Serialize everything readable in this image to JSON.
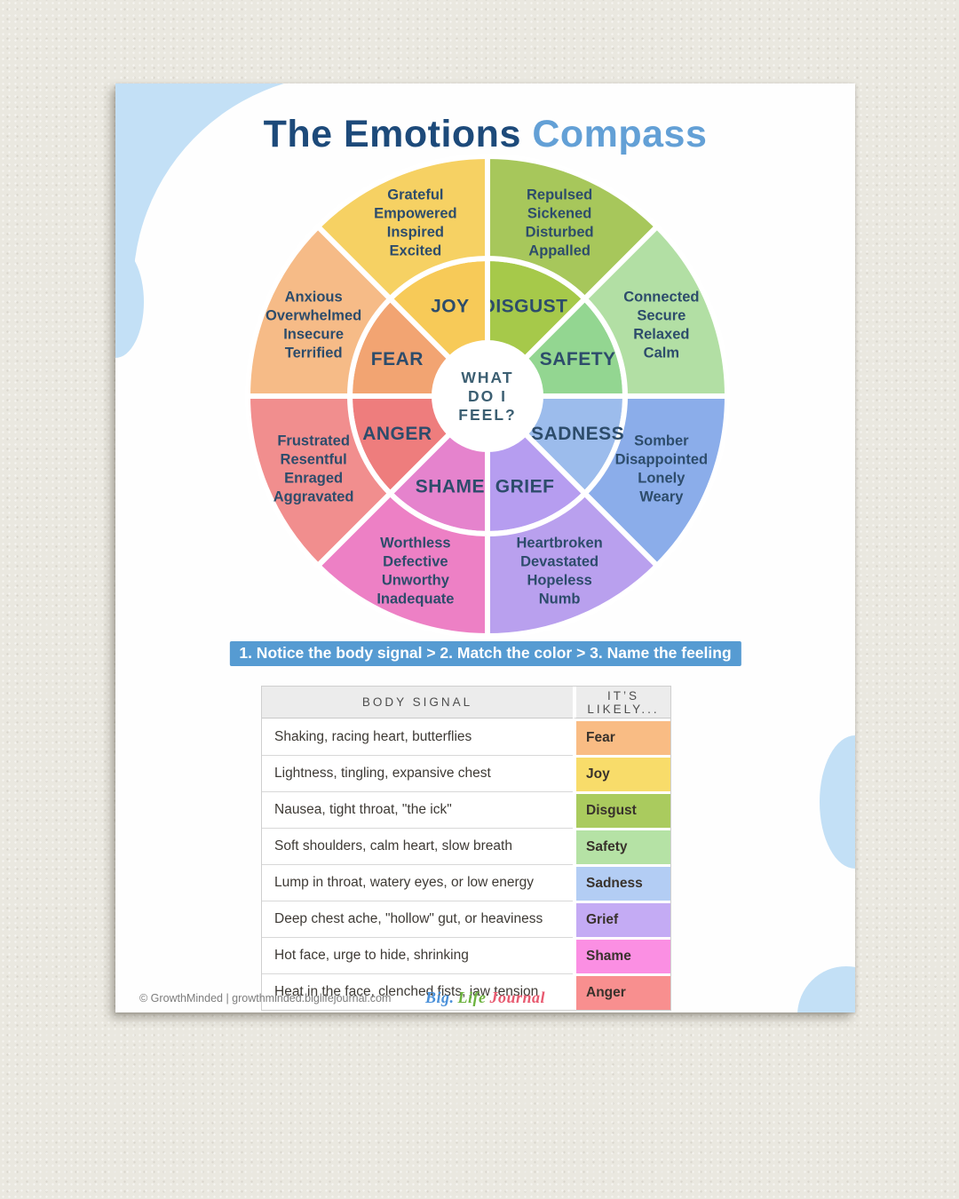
{
  "page": {
    "title_part1": "The Emotions",
    "title_part2": "Compass",
    "title_color1": "#1d4a7a",
    "title_color2": "#63a0d6"
  },
  "wheel": {
    "center_lines": [
      "WHAT",
      "DO I",
      "FEEL?"
    ],
    "center_text_color": "#3c5f72",
    "label_color": "#2d4c6b",
    "segments": [
      {
        "name": "DISGUST",
        "words": [
          "Repulsed",
          "Sickened",
          "Disturbed",
          "Appalled"
        ],
        "inner_color": "#a6c94a",
        "outer_color": "#a7c75b"
      },
      {
        "name": "SAFETY",
        "words": [
          "Connected",
          "Secure",
          "Relaxed",
          "Calm"
        ],
        "inner_color": "#93d691",
        "outer_color": "#b2dfa4"
      },
      {
        "name": "SADNESS",
        "words": [
          "Somber",
          "Disappointed",
          "Lonely",
          "Weary"
        ],
        "inner_color": "#9cbcec",
        "outer_color": "#8badea"
      },
      {
        "name": "GRIEF",
        "words": [
          "Heartbroken",
          "Devastated",
          "Hopeless",
          "Numb"
        ],
        "inner_color": "#b69df0",
        "outer_color": "#b9a0ee"
      },
      {
        "name": "SHAME",
        "words": [
          "Worthless",
          "Defective",
          "Unworthy",
          "Inadequate"
        ],
        "inner_color": "#e583cd",
        "outer_color": "#ed80c5"
      },
      {
        "name": "ANGER",
        "words": [
          "Frustrated",
          "Resentful",
          "Enraged",
          "Aggravated"
        ],
        "inner_color": "#ee7d7d",
        "outer_color": "#f18e8e"
      },
      {
        "name": "FEAR",
        "words": [
          "Anxious",
          "Overwhelmed",
          "Insecure",
          "Terrified"
        ],
        "inner_color": "#f2a472",
        "outer_color": "#f6bb87"
      },
      {
        "name": "JOY",
        "words": [
          "Grateful",
          "Empowered",
          "Inspired",
          "Excited"
        ],
        "inner_color": "#f7ca58",
        "outer_color": "#f6d163"
      }
    ]
  },
  "instruction": {
    "text": "1. Notice the body signal > 2. Match the color > 3. Name the feeling",
    "bg": "#569bd2",
    "fg": "#ffffff"
  },
  "table": {
    "headers": [
      "BODY SIGNAL",
      "IT’S LIKELY..."
    ],
    "rows": [
      {
        "signal": "Shaking, racing heart, butterflies",
        "emotion": "Fear",
        "color": "#f9bc84"
      },
      {
        "signal": "Lightness, tingling, expansive chest",
        "emotion": "Joy",
        "color": "#f8dc6a"
      },
      {
        "signal": "Nausea, tight throat, \"the ick\"",
        "emotion": "Disgust",
        "color": "#aacb5e"
      },
      {
        "signal": "Soft shoulders, calm heart, slow breath",
        "emotion": "Safety",
        "color": "#b5e2a5"
      },
      {
        "signal": "Lump in throat, watery eyes, or low energy",
        "emotion": "Sadness",
        "color": "#b3cdf4"
      },
      {
        "signal": "Deep chest ache, \"hollow\" gut, or heaviness",
        "emotion": "Grief",
        "color": "#c4abf4"
      },
      {
        "signal": "Hot face, urge to hide, shrinking",
        "emotion": "Shame",
        "color": "#fb8fe3"
      },
      {
        "signal": "Heat in the face, clenched fists, jaw tension",
        "emotion": "Anger",
        "color": "#f88f8f"
      }
    ]
  },
  "footer": {
    "copyright": "© GrowthMinded | growthminded.biglifejournal.com",
    "logo": [
      {
        "text": "Big.",
        "color": "#4a90d9"
      },
      {
        "text": "Life",
        "color": "#6db33f"
      },
      {
        "text": "Journal",
        "color": "#e8596f"
      }
    ]
  }
}
